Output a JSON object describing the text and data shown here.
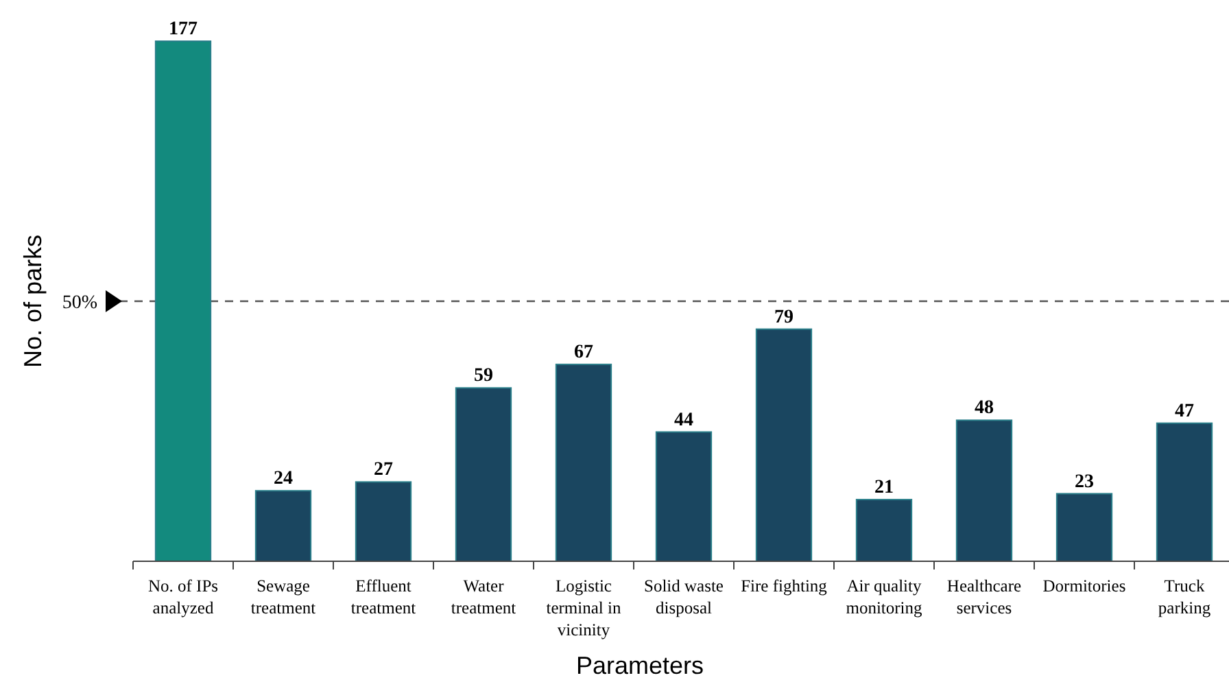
{
  "chart_data": {
    "type": "bar",
    "xlabel": "Parameters",
    "ylabel": "No. of parks",
    "categories": [
      "No. of IPs analyzed",
      "Sewage treatment",
      "Effluent treatment",
      "Water treatment",
      "Logistic terminal in vicinity",
      "Solid waste disposal",
      "Fire fighting",
      "Air quality monitoring",
      "Healthcare services",
      "Dormitories",
      "Truck parking"
    ],
    "values": [
      177,
      24,
      27,
      59,
      67,
      44,
      79,
      21,
      48,
      23,
      47
    ],
    "colors": [
      "#138a7e",
      "#1a4660",
      "#1a4660",
      "#1a4660",
      "#1a4660",
      "#1a4660",
      "#1a4660",
      "#1a4660",
      "#1a4660",
      "#1a4660",
      "#1a4660"
    ],
    "data_labels": true,
    "annotations": [
      "50%"
    ],
    "ref_lines": [
      {
        "axis": "y",
        "value": 88.5,
        "color": "#555555",
        "line_style": "dashed"
      }
    ]
  }
}
